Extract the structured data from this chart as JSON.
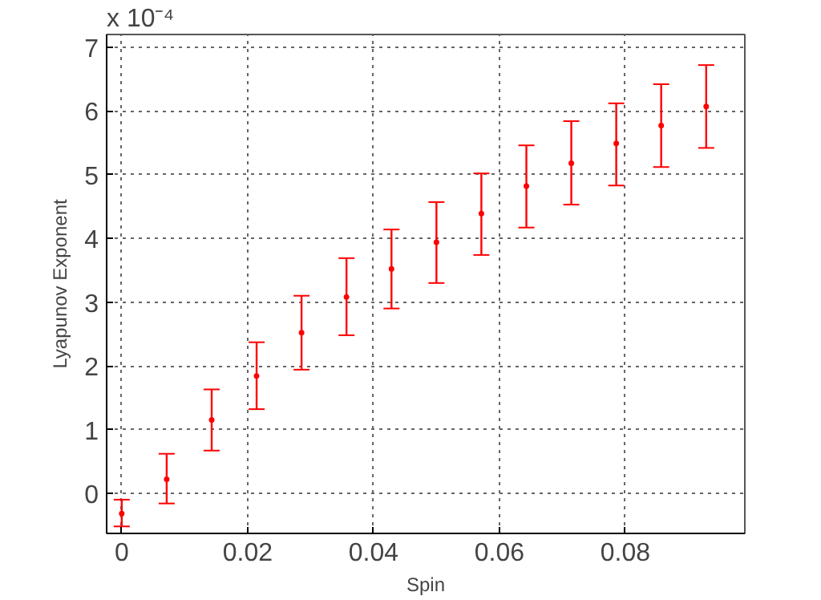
{
  "chart_data": {
    "type": "scatter",
    "xlabel": "Spin",
    "ylabel": "Lyapunov Exponent",
    "annotations": [
      "x 10⁻⁴"
    ],
    "x": [
      0,
      0.00714,
      0.01429,
      0.02143,
      0.02857,
      0.03571,
      0.04286,
      0.05,
      0.05714,
      0.06429,
      0.07143,
      0.07857,
      0.08571,
      0.09286
    ],
    "series": [
      {
        "color": "#ff0000",
        "values": [
          -0.32,
          0.22,
          1.15,
          1.84,
          2.52,
          3.08,
          3.52,
          3.94,
          4.39,
          4.82,
          5.18,
          5.49,
          5.77,
          6.07
        ],
        "errors": [
          [
            -0.52,
            -0.1
          ],
          [
            -0.16,
            0.62
          ],
          [
            0.67,
            1.63
          ],
          [
            1.32,
            2.37
          ],
          [
            1.94,
            3.1
          ],
          [
            2.48,
            3.69
          ],
          [
            2.9,
            4.14
          ],
          [
            3.3,
            4.57
          ],
          [
            3.74,
            5.02
          ],
          [
            4.17,
            5.46
          ],
          [
            4.53,
            5.84
          ],
          [
            4.83,
            6.12
          ],
          [
            5.12,
            6.42
          ],
          [
            5.42,
            6.72
          ]
        ]
      }
    ],
    "xlim": [
      -0.0024,
      0.099
    ],
    "ylim": [
      -0.63,
      7.2
    ],
    "xticks": [
      0,
      0.02,
      0.04,
      0.06,
      0.08
    ],
    "yticks": [
      0,
      1,
      2,
      3,
      4,
      5,
      6,
      7
    ],
    "grid": true,
    "marker": "circle"
  }
}
